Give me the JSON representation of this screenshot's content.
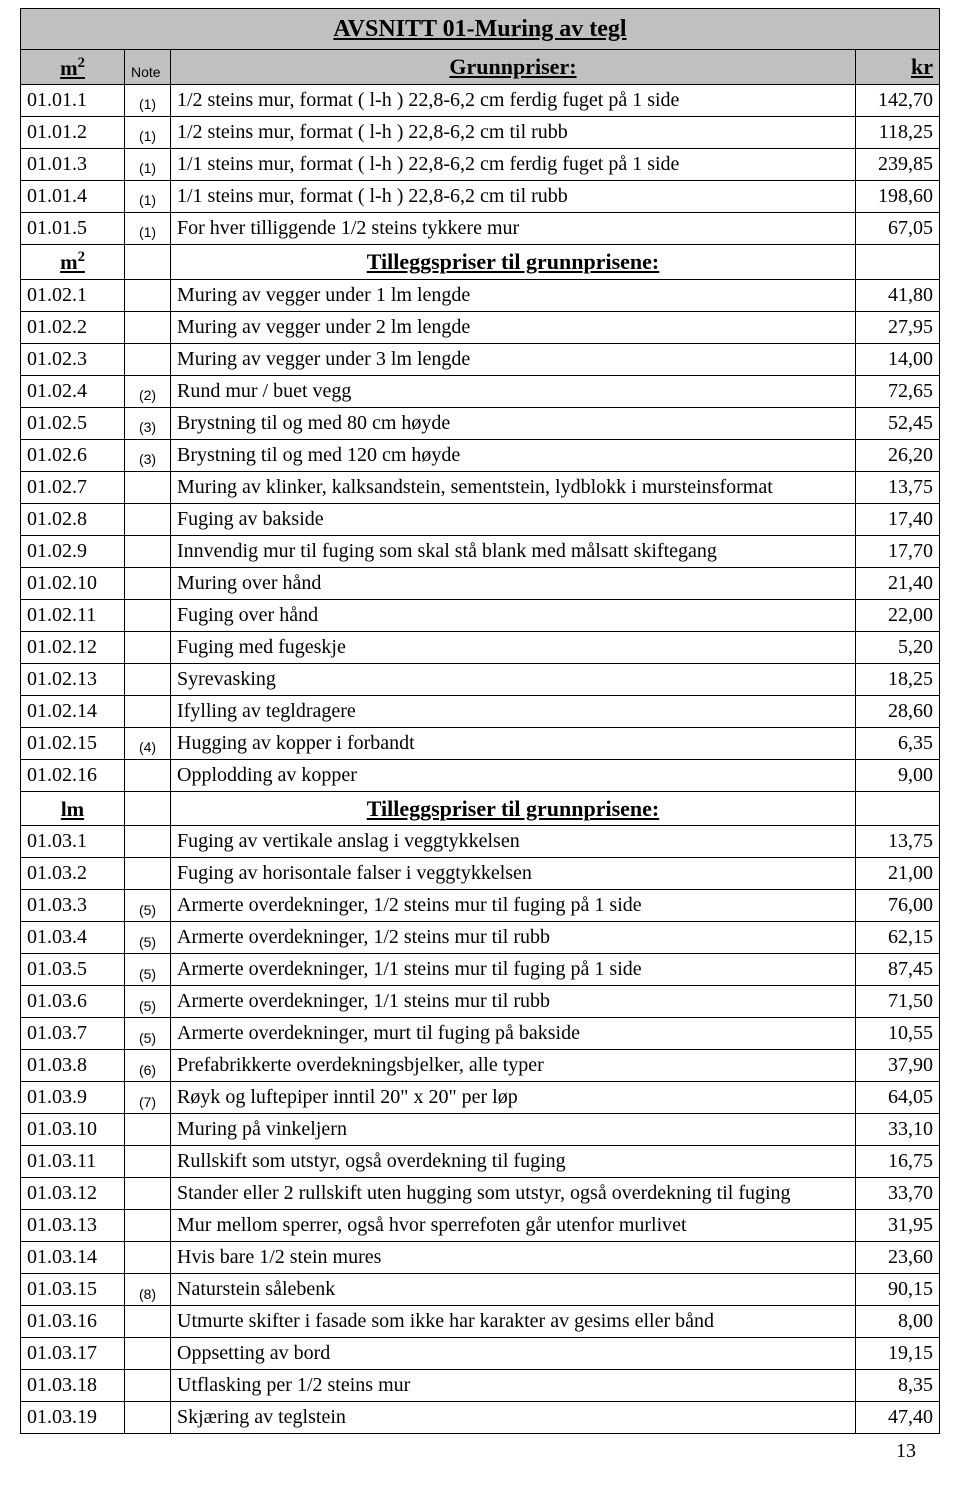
{
  "title": "AVSNITT 01-Muring av tegl",
  "page_number": "13",
  "colors": {
    "header_bg": "#c0c0c0",
    "border": "#000000",
    "text": "#000000",
    "background": "#ffffff"
  },
  "headers": {
    "main": {
      "unit": "m",
      "sup": "2",
      "note": "Note",
      "desc": "Grunnpriser:",
      "price": "kr"
    },
    "sec1": {
      "unit": "m",
      "sup": "2",
      "note": "",
      "desc": "Tilleggspriser til grunnprisene:",
      "price": ""
    },
    "sec2": {
      "unit": "lm",
      "sup": "",
      "note": "",
      "desc": "Tilleggspriser til grunnprisene:",
      "price": ""
    }
  },
  "g1": [
    {
      "code": "01.01.1",
      "note": "(1)",
      "desc": "1/2 steins mur, format ( l-h ) 22,8-6,2 cm ferdig fuget på 1 side",
      "price": "142,70"
    },
    {
      "code": "01.01.2",
      "note": "(1)",
      "desc": "1/2 steins mur, format ( l-h ) 22,8-6,2 cm til rubb",
      "price": "118,25"
    },
    {
      "code": "01.01.3",
      "note": "(1)",
      "desc": "1/1 steins mur, format ( l-h ) 22,8-6,2 cm ferdig fuget på 1 side",
      "price": "239,85"
    },
    {
      "code": "01.01.4",
      "note": "(1)",
      "desc": "1/1 steins mur, format ( l-h ) 22,8-6,2 cm til rubb",
      "price": "198,60"
    },
    {
      "code": "01.01.5",
      "note": "(1)",
      "desc": "For hver tilliggende 1/2 steins tykkere mur",
      "price": "67,05"
    }
  ],
  "g2": [
    {
      "code": "01.02.1",
      "note": "",
      "desc": "Muring av vegger under 1 lm lengde",
      "price": "41,80"
    },
    {
      "code": "01.02.2",
      "note": "",
      "desc": "Muring av vegger under 2 lm lengde",
      "price": "27,95"
    },
    {
      "code": "01.02.3",
      "note": "",
      "desc": "Muring av vegger under 3 lm lengde",
      "price": "14,00"
    },
    {
      "code": "01.02.4",
      "note": "(2)",
      "desc": "Rund mur / buet vegg",
      "price": "72,65"
    },
    {
      "code": "01.02.5",
      "note": "(3)",
      "desc": "Brystning til og med 80 cm høyde",
      "price": "52,45"
    },
    {
      "code": "01.02.6",
      "note": "(3)",
      "desc": "Brystning til og med 120 cm høyde",
      "price": "26,20"
    },
    {
      "code": "01.02.7",
      "note": "",
      "desc": "Muring av klinker, kalksandstein, sementstein, lydblokk i mursteinsformat",
      "price": "13,75"
    },
    {
      "code": "01.02.8",
      "note": "",
      "desc": "Fuging av bakside",
      "price": "17,40"
    },
    {
      "code": "01.02.9",
      "note": "",
      "desc": "Innvendig mur til fuging som skal stå blank med målsatt skiftegang",
      "price": "17,70"
    },
    {
      "code": "01.02.10",
      "note": "",
      "desc": "Muring over hånd",
      "price": "21,40"
    },
    {
      "code": "01.02.11",
      "note": "",
      "desc": "Fuging over hånd",
      "price": "22,00"
    },
    {
      "code": "01.02.12",
      "note": "",
      "desc": "Fuging med fugeskje",
      "price": "5,20"
    },
    {
      "code": "01.02.13",
      "note": "",
      "desc": "Syrevasking",
      "price": "18,25"
    },
    {
      "code": "01.02.14",
      "note": "",
      "desc": "Ifylling av tegldragere",
      "price": "28,60"
    },
    {
      "code": "01.02.15",
      "note": "(4)",
      "desc": "Hugging av kopper i forbandt",
      "price": "6,35"
    },
    {
      "code": "01.02.16",
      "note": "",
      "desc": "Opplodding av kopper",
      "price": "9,00"
    }
  ],
  "g3": [
    {
      "code": "01.03.1",
      "note": "",
      "desc": "Fuging av vertikale anslag i veggtykkelsen",
      "price": "13,75"
    },
    {
      "code": "01.03.2",
      "note": "",
      "desc": "Fuging av horisontale falser i veggtykkelsen",
      "price": "21,00"
    },
    {
      "code": "01.03.3",
      "note": "(5)",
      "desc": "Armerte overdekninger, 1/2 steins mur til fuging på 1 side",
      "price": "76,00"
    },
    {
      "code": "01.03.4",
      "note": "(5)",
      "desc": "Armerte overdekninger, 1/2 steins mur til rubb",
      "price": "62,15"
    },
    {
      "code": "01.03.5",
      "note": "(5)",
      "desc": "Armerte overdekninger, 1/1 steins mur til fuging på 1 side",
      "price": "87,45"
    },
    {
      "code": "01.03.6",
      "note": "(5)",
      "desc": "Armerte overdekninger, 1/1 steins mur til rubb",
      "price": "71,50"
    },
    {
      "code": "01.03.7",
      "note": "(5)",
      "desc": "Armerte overdekninger, murt til fuging på bakside",
      "price": "10,55"
    },
    {
      "code": "01.03.8",
      "note": "(6)",
      "desc": "Prefabrikkerte overdekningsbjelker, alle typer",
      "price": "37,90"
    },
    {
      "code": "01.03.9",
      "note": "(7)",
      "desc": "Røyk og luftepiper inntil 20\" x 20\" per løp",
      "price": "64,05"
    },
    {
      "code": "01.03.10",
      "note": "",
      "desc": "Muring på vinkeljern",
      "price": "33,10"
    },
    {
      "code": "01.03.11",
      "note": "",
      "desc": "Rullskift som utstyr, også overdekning til fuging",
      "price": "16,75"
    },
    {
      "code": "01.03.12",
      "note": "",
      "desc": "Stander eller 2 rullskift uten hugging som utstyr, også overdekning til fuging",
      "price": "33,70"
    },
    {
      "code": "01.03.13",
      "note": "",
      "desc": "Mur mellom sperrer, også hvor sperrefoten går utenfor murlivet",
      "price": "31,95"
    },
    {
      "code": "01.03.14",
      "note": "",
      "desc": "Hvis bare 1/2 stein mures",
      "price": "23,60"
    },
    {
      "code": "01.03.15",
      "note": "(8)",
      "desc": "Naturstein sålebenk",
      "price": "90,15"
    },
    {
      "code": "01.03.16",
      "note": "",
      "desc": "Utmurte skifter i fasade som ikke har karakter av gesims eller bånd",
      "price": "8,00"
    },
    {
      "code": "01.03.17",
      "note": "",
      "desc": "Oppsetting av bord",
      "price": "19,15"
    },
    {
      "code": "01.03.18",
      "note": "",
      "desc": "Utflasking per 1/2 steins mur",
      "price": "8,35"
    },
    {
      "code": "01.03.19",
      "note": "",
      "desc": "Skjæring av teglstein",
      "price": "47,40"
    }
  ]
}
